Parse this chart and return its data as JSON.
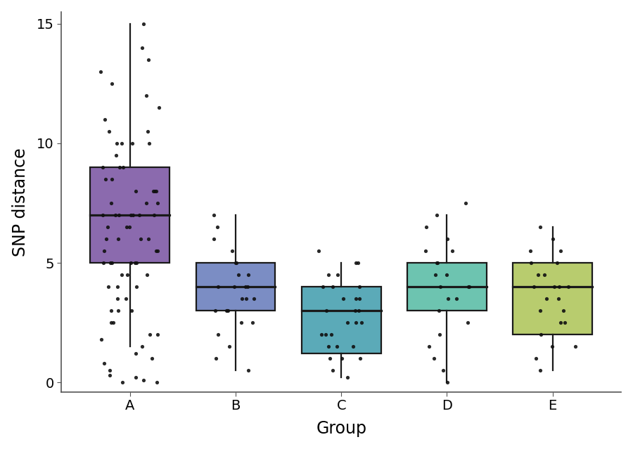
{
  "groups": [
    "A",
    "B",
    "C",
    "D",
    "E"
  ],
  "box_colors": [
    "#8B6AAE",
    "#7B8DC4",
    "#5BAAB8",
    "#6DC4B0",
    "#B8CC6E"
  ],
  "box_edge_color": "#1a1a1a",
  "dot_color": "#111111",
  "ylabel": "SNP distance",
  "xlabel": "Group",
  "ylim": [
    -0.4,
    15.5
  ],
  "yticks": [
    0,
    5,
    10,
    15
  ],
  "box_stats": {
    "A": {
      "median": 7.0,
      "q1": 5.0,
      "q3": 9.0,
      "whisker_low": 1.5,
      "whisker_high": 15.0
    },
    "B": {
      "median": 4.0,
      "q1": 3.0,
      "q3": 5.0,
      "whisker_low": 0.5,
      "whisker_high": 7.0
    },
    "C": {
      "median": 3.0,
      "q1": 1.2,
      "q3": 4.0,
      "whisker_low": 0.2,
      "whisker_high": 5.0
    },
    "D": {
      "median": 4.0,
      "q1": 3.0,
      "q3": 5.0,
      "whisker_low": 0.0,
      "whisker_high": 7.0
    },
    "E": {
      "median": 4.0,
      "q1": 2.0,
      "q3": 5.0,
      "whisker_low": 0.5,
      "whisker_high": 6.5
    }
  },
  "data_points": {
    "A": [
      0.0,
      0.0,
      0.1,
      0.2,
      0.3,
      0.5,
      0.8,
      1.0,
      1.2,
      1.5,
      1.8,
      2.0,
      2.0,
      2.5,
      2.5,
      3.0,
      3.0,
      3.0,
      3.5,
      3.5,
      4.0,
      4.0,
      4.0,
      4.5,
      4.5,
      4.5,
      5.0,
      5.0,
      5.0,
      5.0,
      5.0,
      5.0,
      5.5,
      5.5,
      5.5,
      6.0,
      6.0,
      6.0,
      6.0,
      6.5,
      6.5,
      6.5,
      7.0,
      7.0,
      7.0,
      7.0,
      7.0,
      7.0,
      7.0,
      7.5,
      7.5,
      7.5,
      8.0,
      8.0,
      8.0,
      8.0,
      8.5,
      8.5,
      9.0,
      9.0,
      9.0,
      9.5,
      10.0,
      10.0,
      10.0,
      10.0,
      10.5,
      10.5,
      11.0,
      11.5,
      12.0,
      12.5,
      13.0,
      13.5,
      14.0,
      15.0
    ],
    "B": [
      0.5,
      1.0,
      1.5,
      2.0,
      2.5,
      2.5,
      3.0,
      3.0,
      3.0,
      3.0,
      3.5,
      3.5,
      3.5,
      4.0,
      4.0,
      4.0,
      4.0,
      4.5,
      4.5,
      5.0,
      5.0,
      5.5,
      6.0,
      6.5,
      7.0
    ],
    "C": [
      0.2,
      0.5,
      1.0,
      1.0,
      1.0,
      1.5,
      1.5,
      1.5,
      2.0,
      2.0,
      2.0,
      2.5,
      2.5,
      2.5,
      3.0,
      3.0,
      3.0,
      3.5,
      3.5,
      3.5,
      4.0,
      4.0,
      4.0,
      4.5,
      4.5,
      5.0,
      5.0,
      5.5
    ],
    "D": [
      0.0,
      0.5,
      1.0,
      1.5,
      2.0,
      2.5,
      3.0,
      3.5,
      3.5,
      4.0,
      4.0,
      4.0,
      4.5,
      4.5,
      5.0,
      5.0,
      5.5,
      5.5,
      6.0,
      6.5,
      7.0,
      7.5
    ],
    "E": [
      0.5,
      1.0,
      1.5,
      1.5,
      2.0,
      2.5,
      2.5,
      3.0,
      3.0,
      3.5,
      3.5,
      4.0,
      4.0,
      4.0,
      4.0,
      4.5,
      4.5,
      5.0,
      5.0,
      5.5,
      5.5,
      6.0,
      6.5
    ]
  },
  "box_width": 0.75,
  "linewidth": 1.6,
  "dot_size": 14,
  "dot_alpha": 0.9,
  "jitter_seed": 42,
  "jitter_amount_A": 0.28,
  "jitter_amount": 0.22,
  "label_fontsize": 17,
  "tick_fontsize": 14,
  "background_color": "#ffffff",
  "spine_color": "#555555"
}
